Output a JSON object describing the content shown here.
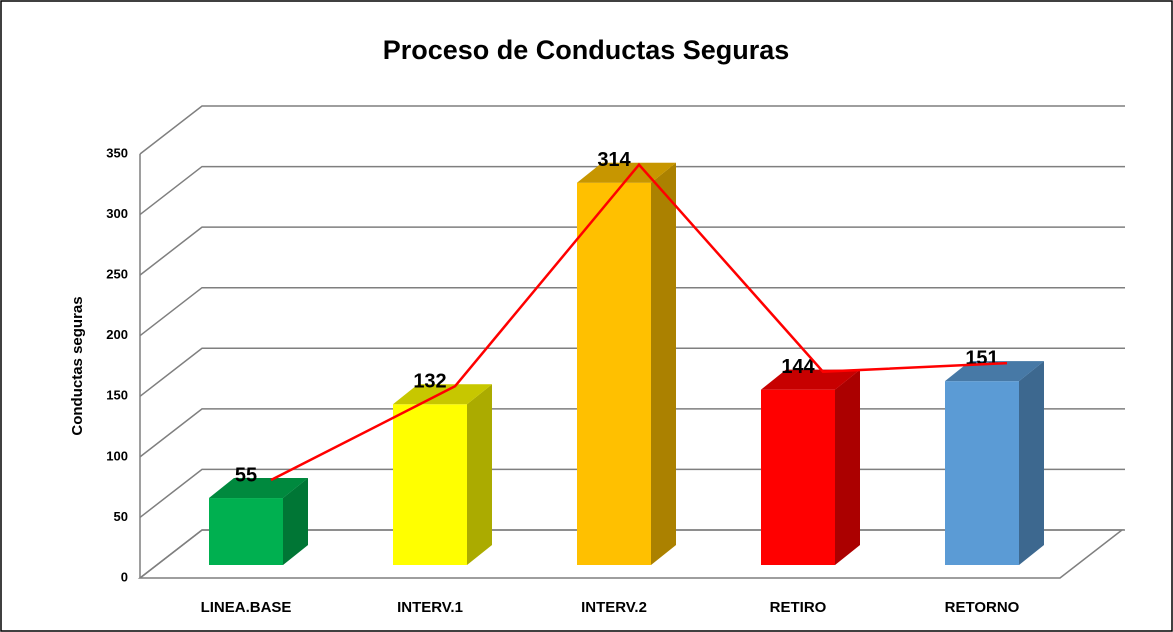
{
  "chart_data": {
    "type": "bar3d",
    "title": "Proceso de Conductas Seguras",
    "ylabel": "Conductas seguras",
    "categories": [
      "LINEA.BASE",
      "INTERV.1",
      "INTERV.2",
      "RETIRO",
      "RETORNO"
    ],
    "values": [
      55,
      132,
      314,
      144,
      151
    ],
    "colors": [
      "#00b050",
      "#ffff00",
      "#ffc000",
      "#ff0000",
      "#5b9bd5"
    ],
    "line_color": "#ff0000",
    "ylim": [
      0,
      350
    ],
    "yticks": [
      0,
      50,
      100,
      150,
      200,
      250,
      300,
      350
    ],
    "grid": true
  }
}
